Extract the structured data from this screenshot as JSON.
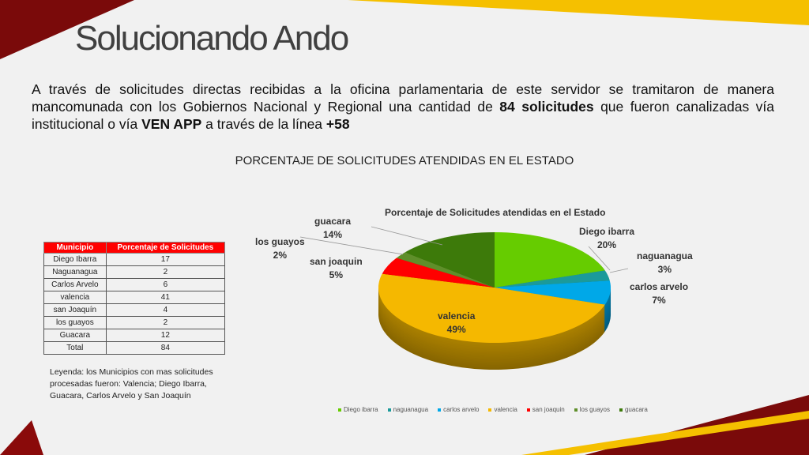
{
  "title": "Solucionando Ando",
  "intro": {
    "p1": "A través de solicitudes directas recibidas a la oficina parlamentaria de este servidor se tramitaron de manera mancomunada con los Gobiernos Nacional y Regional una cantidad de ",
    "b1": "84 solicitudes",
    "p2": " que fueron canalizadas vía institucional o vía ",
    "b2": "VEN APP",
    "p3": " a través de la línea ",
    "b3": "+58"
  },
  "section_title": "PORCENTAJE DE SOLICITUDES ATENDIDAS EN EL ESTADO",
  "table": {
    "headers": [
      "Municipio",
      "Porcentaje de Solicitudes"
    ],
    "rows": [
      [
        "Diego Ibarra",
        "17"
      ],
      [
        "Naguanagua",
        "2"
      ],
      [
        "Carlos Arvelo",
        "6"
      ],
      [
        "valencia",
        "41"
      ],
      [
        "san Joaquín",
        "4"
      ],
      [
        "los guayos",
        "2"
      ],
      [
        "Guacara",
        "12"
      ],
      [
        "Total",
        "84"
      ]
    ]
  },
  "legend_note": "Leyenda: los Municipios con mas solicitudes procesadas fueron: Valencia; Diego Ibarra, Guacara, Carlos Arvelo y San Joaquín",
  "chart_data": {
    "type": "pie",
    "title": "Porcentaje de Solicitudes atendidas en el Estado",
    "legend_position": "bottom",
    "categories": [
      "Diego ibarra",
      "naguanagua",
      "carlos arvelo",
      "valencia",
      "san joaquin",
      "los guayos",
      "guacara"
    ],
    "values": [
      20,
      3,
      7,
      49,
      5,
      2,
      14
    ],
    "labels": [
      "20%",
      "3%",
      "7%",
      "49%",
      "5%",
      "2%",
      "14%"
    ],
    "colors": [
      "#66cc00",
      "#1b9a9a",
      "#00a8e8",
      "#f5b800",
      "#ff0000",
      "#5f8f2a",
      "#3d7a0a"
    ]
  }
}
